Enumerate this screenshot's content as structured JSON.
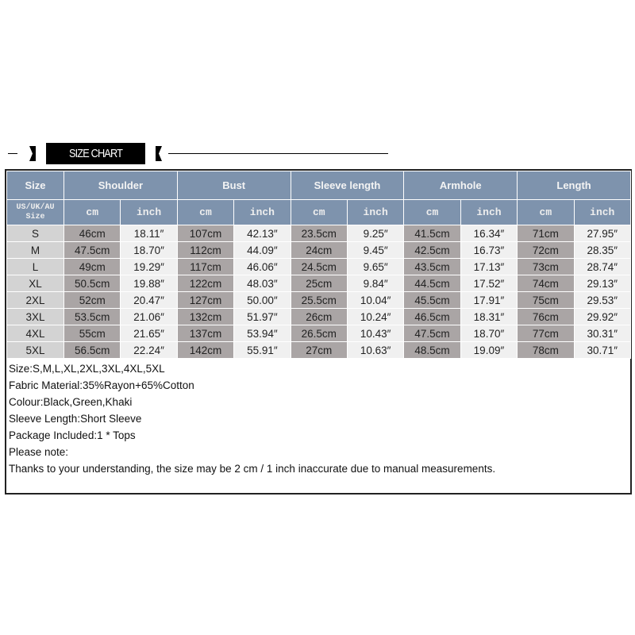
{
  "banner": {
    "title": "SIZE CHART"
  },
  "table": {
    "group_headers": [
      "Size",
      "Shoulder",
      "Bust",
      "Sleeve length",
      "Armhole",
      "Length"
    ],
    "size_subheader": "US/UK/AU Size",
    "unit_cm": "cm",
    "unit_inch": "inch",
    "rows": [
      [
        "S",
        "46cm",
        "18.11″",
        "107cm",
        "42.13″",
        "23.5cm",
        "9.25″",
        "41.5cm",
        "16.34″",
        "71cm",
        "27.95″"
      ],
      [
        "M",
        "47.5cm",
        "18.70″",
        "112cm",
        "44.09″",
        "24cm",
        "9.45″",
        "42.5cm",
        "16.73″",
        "72cm",
        "28.35″"
      ],
      [
        "L",
        "49cm",
        "19.29″",
        "117cm",
        "46.06″",
        "24.5cm",
        "9.65″",
        "43.5cm",
        "17.13″",
        "73cm",
        "28.74″"
      ],
      [
        "XL",
        "50.5cm",
        "19.88″",
        "122cm",
        "48.03″",
        "25cm",
        "9.84″",
        "44.5cm",
        "17.52″",
        "74cm",
        "29.13″"
      ],
      [
        "2XL",
        "52cm",
        "20.47″",
        "127cm",
        "50.00″",
        "25.5cm",
        "10.04″",
        "45.5cm",
        "17.91″",
        "75cm",
        "29.53″"
      ],
      [
        "3XL",
        "53.5cm",
        "21.06″",
        "132cm",
        "51.97″",
        "26cm",
        "10.24″",
        "46.5cm",
        "18.31″",
        "76cm",
        "29.92″"
      ],
      [
        "4XL",
        "55cm",
        "21.65″",
        "137cm",
        "53.94″",
        "26.5cm",
        "10.43″",
        "47.5cm",
        "18.70″",
        "77cm",
        "30.31″"
      ],
      [
        "5XL",
        "56.5cm",
        "22.24″",
        "142cm",
        "55.91″",
        "27cm",
        "10.63″",
        "48.5cm",
        "19.09″",
        "78cm",
        "30.71″"
      ]
    ]
  },
  "notes": [
    "Size:S,M,L,XL,2XL,3XL,4XL,5XL",
    "Fabric Material:35%Rayon+65%Cotton",
    "Colour:Black,Green,Khaki",
    "Sleeve Length:Short Sleeve",
    "Package Included:1 * Tops",
    "Please note:",
    "Thanks to your understanding, the size may be 2 cm / 1 inch inaccurate due to manual measurements."
  ],
  "colors": {
    "header": "#7e93ad",
    "size_cell": "#d3d3d3",
    "cm_cell": "#aaa5a5",
    "inch_cell": "#f0f0f0"
  }
}
